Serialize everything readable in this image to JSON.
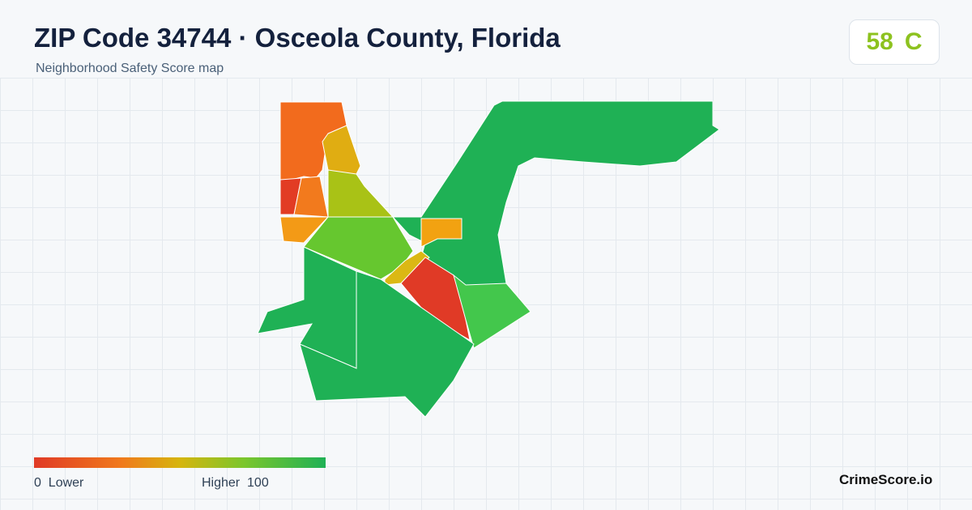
{
  "header": {
    "title": "ZIP Code 34744 · Osceola County, Florida",
    "subtitle": "Neighborhood Safety Score map"
  },
  "score": {
    "value": "58",
    "grade": "C"
  },
  "legend": {
    "min": 0,
    "min_label": "Lower",
    "max_label": "Higher",
    "max": 100
  },
  "brand": "CrimeScore.io"
}
